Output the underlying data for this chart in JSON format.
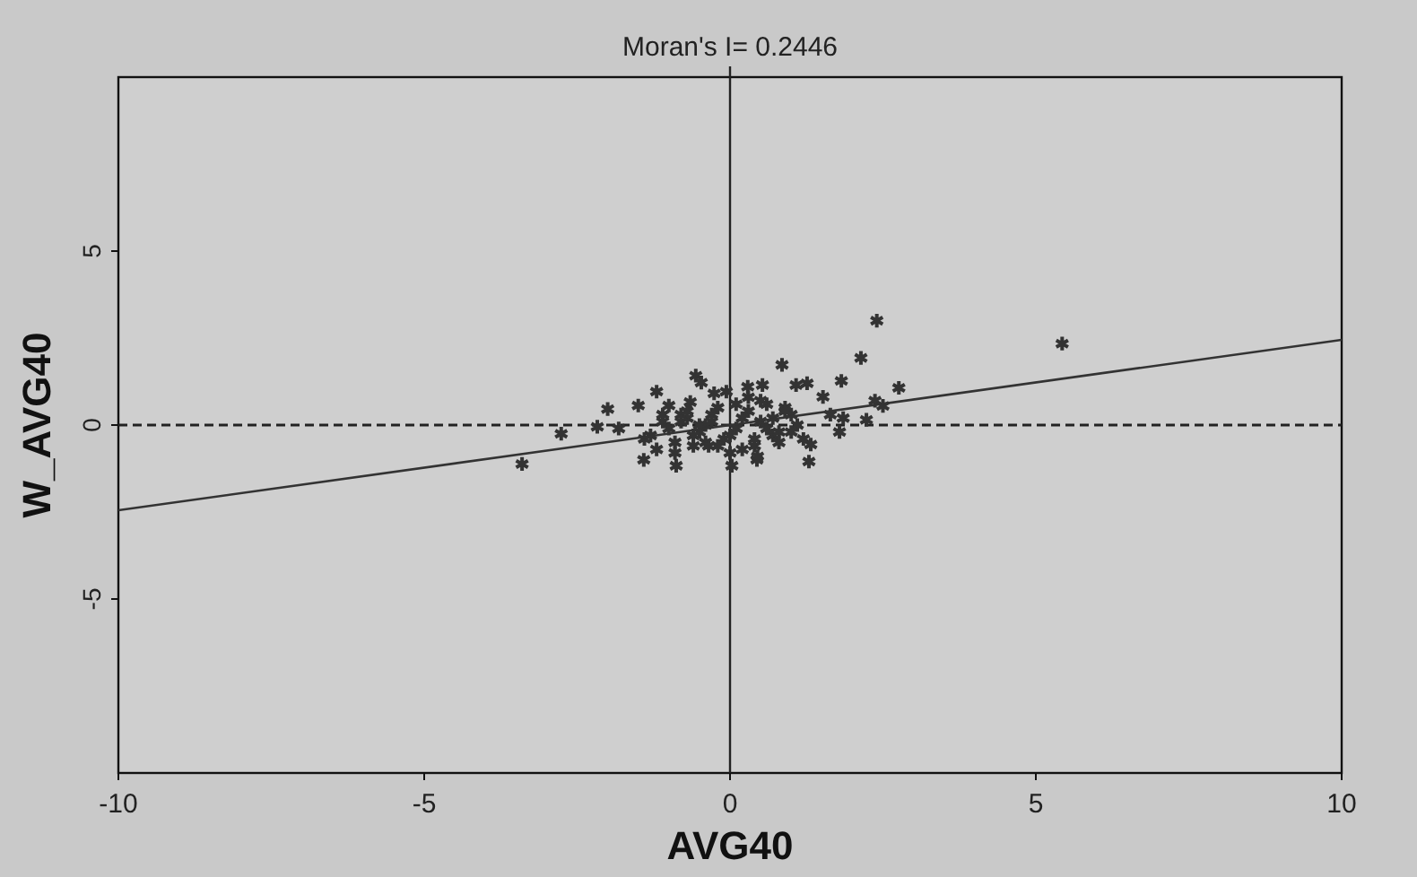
{
  "chart_data": {
    "type": "scatter",
    "title": "Moran's I= 0.2446",
    "xlabel": "AVG40",
    "ylabel": "W_AVG40",
    "xlim": [
      -10,
      10
    ],
    "ylim": [
      -10,
      10
    ],
    "xticks": [
      -10,
      -5,
      0,
      5,
      10
    ],
    "yticks": [
      -5,
      0,
      5
    ],
    "grid": false,
    "ref_lines": [
      {
        "axis": "y",
        "value": 0,
        "line_style": "dashed",
        "color": "#222222"
      },
      {
        "axis": "x",
        "value": 0,
        "line_style": "solid",
        "color": "#222222"
      }
    ],
    "series": [
      {
        "color": "#333333",
        "marker": "cross",
        "x": [
          5.43,
          2.4,
          2.14,
          0.85,
          1.82,
          2.76,
          1.52,
          -0.56,
          -0.47,
          -1.2,
          -2.0,
          -1.5,
          -2.76,
          -3.4,
          -1.41,
          -0.88,
          0.03,
          0.44,
          1.29,
          1.32,
          0.29,
          0.53,
          1.08,
          1.26,
          2.37,
          2.5,
          2.23,
          1.79,
          1.85,
          1.64,
          -2.17,
          -1.82,
          -1.0,
          -0.65,
          -0.26,
          -0.06,
          -1.3,
          -1.1,
          -0.9,
          -0.7,
          -0.5,
          -0.3,
          -0.1,
          0.1,
          0.3,
          0.5,
          0.7,
          0.9,
          1.1,
          -1.2,
          -1.0,
          -0.8,
          -0.6,
          -0.4,
          -0.2,
          0.0,
          0.2,
          0.4,
          0.6,
          0.8,
          1.0,
          1.2,
          -0.9,
          -0.6,
          -0.3,
          0.2,
          0.5,
          0.8,
          -1.1,
          -0.7,
          -0.4,
          0.1,
          0.4,
          0.7,
          1.0,
          -0.5,
          -0.2,
          0.3,
          0.6,
          0.9,
          -0.8,
          0.0,
          -1.4,
          -0.35,
          0.45
        ],
        "values": [
          2.34,
          3.0,
          1.93,
          1.73,
          1.27,
          1.07,
          0.81,
          1.42,
          1.22,
          0.96,
          0.46,
          0.56,
          -0.25,
          -1.12,
          -1.0,
          -1.17,
          -1.17,
          -1.0,
          -1.05,
          -0.56,
          1.1,
          1.15,
          1.15,
          1.2,
          0.7,
          0.55,
          0.15,
          -0.2,
          0.2,
          0.3,
          -0.05,
          -0.1,
          0.56,
          0.66,
          0.91,
          0.96,
          -0.3,
          0.1,
          -0.5,
          0.2,
          -0.2,
          0.3,
          -0.4,
          -0.1,
          0.4,
          0.1,
          -0.3,
          0.5,
          0.0,
          -0.7,
          -0.1,
          0.3,
          -0.6,
          0.0,
          0.5,
          -0.3,
          0.2,
          -0.6,
          0.6,
          -0.2,
          0.3,
          -0.4,
          -0.8,
          -0.3,
          0.1,
          -0.7,
          0.7,
          -0.5,
          0.3,
          0.4,
          -0.5,
          0.6,
          -0.4,
          0.2,
          -0.2,
          0.0,
          -0.6,
          0.8,
          -0.1,
          0.4,
          0.1,
          -0.8,
          -0.4,
          -0.6,
          -0.9
        ]
      },
      {
        "type": "line",
        "marker": "none",
        "color": "#333333",
        "x": [
          -10,
          10
        ],
        "values": [
          -2.45,
          2.45
        ]
      }
    ]
  }
}
